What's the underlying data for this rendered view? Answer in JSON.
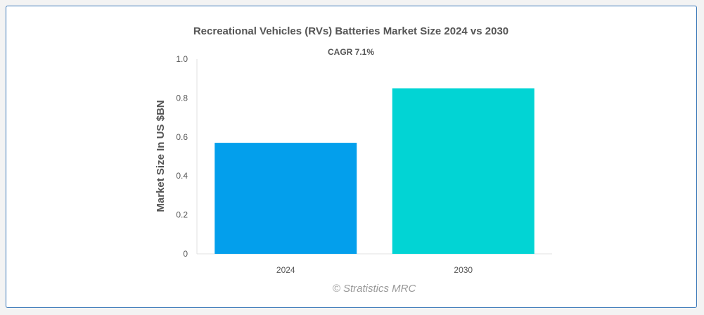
{
  "chart_data": {
    "type": "bar",
    "title": "Recreational Vehicles (RVs) Batteries Market Size 2024 vs 2030",
    "subtitle": "CAGR 7.1%",
    "xlabel": "",
    "ylabel": "Market Size In US $BN",
    "categories": [
      "2024",
      "2030"
    ],
    "values": [
      0.57,
      0.85
    ],
    "ylim": [
      0,
      1.0
    ],
    "yticks": [
      0,
      0.2,
      0.4,
      0.6,
      0.8,
      1.0
    ],
    "ytick_labels": [
      "0",
      "0.2",
      "0.4",
      "0.6",
      "0.8",
      "1.0"
    ],
    "colors": [
      "#039fec",
      "#02d4d4"
    ],
    "grid": false,
    "legend": "none",
    "credit": "© Stratistics MRC"
  }
}
